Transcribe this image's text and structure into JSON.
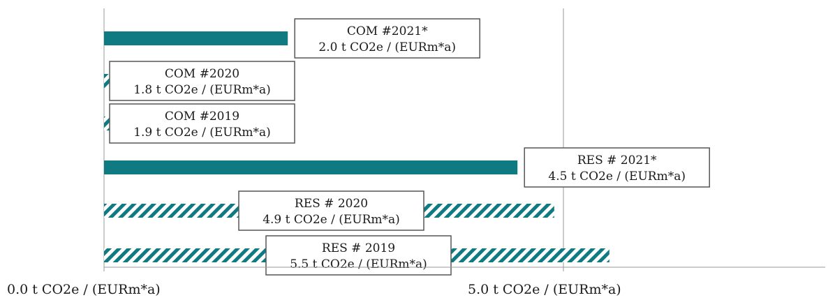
{
  "chart_data": {
    "type": "bar",
    "orientation": "horizontal",
    "categories": [
      "COM #2021*",
      "COM #2020",
      "COM #2019",
      "RES # 2021*",
      "RES # 2020",
      "RES # 2019"
    ],
    "values": [
      2.0,
      1.8,
      1.9,
      4.5,
      4.9,
      5.5
    ],
    "value_labels": [
      "2.0 t CO2e / (EURm*a)",
      "1.8 t CO2e / (EURm*a)",
      "1.9 t CO2e / (EURm*a)",
      "4.5 t CO2e / (EURm*a)",
      "4.9 t CO2e / (EURm*a)",
      "5.5 t CO2e / (EURm*a)"
    ],
    "bar_styles": [
      "solid",
      "hatched",
      "hatched",
      "solid",
      "hatched",
      "hatched"
    ],
    "bar_color": "#0f7a82",
    "xlim": [
      0,
      5.5
    ],
    "x_ticks": [
      0,
      5
    ],
    "x_tick_labels": [
      "0.0 t CO2e / (EURm*a)",
      "5.0 t CO2e / (EURm*a)"
    ],
    "grid": "vertical gridlines at ticks",
    "legend": "none"
  }
}
